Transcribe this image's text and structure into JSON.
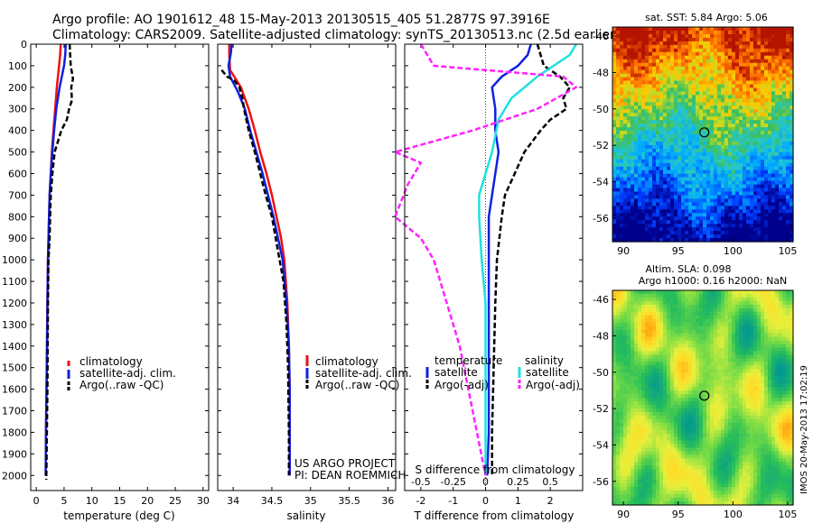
{
  "header": {
    "line1": "Argo profile: AO 1901612_48 15-May-2013 20130515_405 51.2877S 97.3916E",
    "line2": "Climatology: CARS2009. Satellite-adjusted climatology: synTS_20130513.nc (2.5d earlier)"
  },
  "colors": {
    "clim": "#ee1111",
    "sat": "#1020e0",
    "argo": "#000000",
    "sat_s": "#20e0e0",
    "argo_s": "#ff22ff"
  },
  "chart_data": [
    {
      "id": "temperature",
      "type": "line",
      "xlabel": "temperature (deg C)",
      "xlim": [
        -1,
        31
      ],
      "xticks": [
        0,
        5,
        10,
        15,
        20,
        25,
        30
      ],
      "xtick_labels": [
        "0",
        "5",
        "10",
        "15",
        "20",
        "25",
        "30"
      ],
      "ylim": [
        0,
        2070
      ],
      "yticks": [
        0,
        100,
        200,
        300,
        400,
        500,
        600,
        700,
        800,
        900,
        1000,
        1100,
        1200,
        1300,
        1400,
        1500,
        1600,
        1700,
        1800,
        1900,
        2000
      ],
      "ytick_labels": [
        "0",
        "100",
        "200",
        "300",
        "400",
        "500",
        "600",
        "700",
        "800",
        "900",
        "1000",
        "1100",
        "1200",
        "1300",
        "1400",
        "1500",
        "1600",
        "1700",
        "1800",
        "1900",
        "2000"
      ],
      "legend": [
        "climatology",
        "satellite-adj. clim.",
        "Argo(..raw -QC)"
      ],
      "legend_position": "lower-right",
      "series": [
        {
          "name": "climatology",
          "color": "clim",
          "dash": "solid",
          "x": [
            4.4,
            4.3,
            4.1,
            3.7,
            3.4,
            3.1,
            2.8,
            2.6,
            2.4,
            2.3,
            2.2,
            2.1,
            2.0,
            1.9,
            1.85,
            1.75,
            1.7
          ],
          "y": [
            0,
            50,
            100,
            200,
            300,
            400,
            500,
            600,
            700,
            800,
            900,
            1000,
            1200,
            1400,
            1600,
            1800,
            2000
          ]
        },
        {
          "name": "satellite-adj. clim.",
          "color": "sat",
          "dash": "solid",
          "x": [
            5.3,
            5.2,
            5.0,
            4.2,
            3.6,
            3.2,
            2.9,
            2.6,
            2.4,
            2.3,
            2.2,
            2.1,
            2.0,
            1.95,
            1.85,
            1.75,
            1.7
          ],
          "y": [
            0,
            50,
            100,
            200,
            300,
            400,
            500,
            600,
            700,
            800,
            900,
            1000,
            1200,
            1400,
            1600,
            1800,
            2000
          ]
        },
        {
          "name": "Argo(..raw -QC)",
          "color": "argo",
          "dash": "dash",
          "x": [
            6.0,
            6.2,
            6.6,
            6.3,
            6.4,
            5.9,
            5.5,
            4.5,
            3.3,
            2.9,
            2.6,
            2.5,
            2.4,
            2.2,
            2.1,
            2.05,
            2.0,
            1.9,
            1.85,
            1.8
          ],
          "y": [
            0,
            100,
            160,
            200,
            260,
            300,
            350,
            400,
            500,
            600,
            700,
            800,
            900,
            1000,
            1200,
            1400,
            1600,
            1800,
            1950,
            2020
          ]
        }
      ]
    },
    {
      "id": "salinity",
      "type": "line",
      "xlabel": "salinity",
      "xlim": [
        33.8,
        36.1
      ],
      "xticks": [
        34,
        34.5,
        35,
        35.5,
        36
      ],
      "xtick_labels": [
        "34",
        "34.5",
        "35",
        "35.5",
        "36"
      ],
      "ylim": [
        0,
        2070
      ],
      "yticks": [
        0,
        100,
        200,
        300,
        400,
        500,
        600,
        700,
        800,
        900,
        1000,
        1100,
        1200,
        1300,
        1400,
        1500,
        1600,
        1700,
        1800,
        1900,
        2000
      ],
      "legend": [
        "climatology",
        "satellite-adj. clim.",
        "Argo(..raw -QC)"
      ],
      "legend_position": "lower-right",
      "annotations": [
        "US ARGO PROJECT",
        "PI: DEAN ROEMMICH"
      ],
      "series": [
        {
          "name": "climatology",
          "color": "clim",
          "dash": "solid",
          "x": [
            33.95,
            33.95,
            33.96,
            34.1,
            34.2,
            34.28,
            34.35,
            34.43,
            34.5,
            34.56,
            34.62,
            34.66,
            34.7,
            34.72,
            34.73,
            34.73,
            34.73
          ],
          "y": [
            0,
            50,
            120,
            200,
            300,
            400,
            500,
            600,
            700,
            800,
            900,
            1000,
            1200,
            1400,
            1600,
            1800,
            2000
          ]
        },
        {
          "name": "satellite-adj. clim.",
          "color": "sat",
          "dash": "solid",
          "x": [
            33.98,
            33.97,
            33.94,
            33.96,
            34.06,
            34.15,
            34.22,
            34.3,
            34.38,
            34.45,
            34.52,
            34.58,
            34.64,
            34.69,
            34.72,
            34.73,
            34.73,
            34.73
          ],
          "y": [
            0,
            40,
            100,
            150,
            220,
            300,
            400,
            500,
            600,
            700,
            800,
            900,
            1000,
            1200,
            1400,
            1600,
            1800,
            2000
          ]
        },
        {
          "name": "Argo(..raw -QC)",
          "color": "argo",
          "dash": "dash",
          "x": [
            33.85,
            33.92,
            34.02,
            34.08,
            34.12,
            34.14,
            34.2,
            34.28,
            34.35,
            34.42,
            34.5,
            34.55,
            34.6,
            34.65,
            34.69,
            34.71,
            34.72,
            34.72
          ],
          "y": [
            120,
            150,
            170,
            200,
            250,
            300,
            400,
            500,
            600,
            700,
            800,
            900,
            1000,
            1100,
            1300,
            1500,
            1800,
            2000
          ]
        }
      ]
    },
    {
      "id": "difference",
      "type": "line",
      "xlabel": "T difference from climatology",
      "xlabel_top": "S difference from climatology",
      "xlim": [
        -2.5,
        3
      ],
      "xticks": [
        -2,
        -1,
        0,
        1,
        2
      ],
      "xtick_labels": [
        "-2",
        "-1",
        "0",
        "1",
        "2"
      ],
      "s_ticks": [
        -0.5,
        -0.25,
        0,
        0.25,
        0.5
      ],
      "s_tick_labels": [
        "-0.5",
        "-0.25",
        "0",
        "0.25",
        "0.5"
      ],
      "ylim": [
        0,
        2070
      ],
      "yticks": [
        0,
        100,
        200,
        300,
        400,
        500,
        600,
        700,
        800,
        900,
        1000,
        1100,
        1200,
        1300,
        1400,
        1500,
        1600,
        1700,
        1800,
        1900,
        2000
      ],
      "legend_groups": [
        {
          "title": "temperature",
          "entries": [
            "satellite",
            "Argo(-adj)"
          ]
        },
        {
          "title": "salinity",
          "entries": [
            "satellite",
            "Argo(-adj)"
          ]
        }
      ],
      "series": [
        {
          "name": "temperature satellite",
          "color": "sat",
          "dash": "solid",
          "x": [
            1.4,
            1.3,
            1.0,
            0.5,
            0.2,
            0.3,
            0.3,
            0.4,
            0.3,
            0.2,
            0.1,
            0.1,
            0.1,
            0.1,
            0.1,
            0.1,
            0.05
          ],
          "y": [
            0,
            50,
            100,
            150,
            200,
            300,
            400,
            500,
            600,
            700,
            800,
            1000,
            1200,
            1400,
            1600,
            1800,
            2000
          ]
        },
        {
          "name": "temperature Argo(-adj)",
          "color": "argo",
          "dash": "dash",
          "x": [
            1.6,
            1.8,
            2.3,
            2.6,
            2.4,
            2.5,
            2.0,
            1.7,
            1.2,
            0.9,
            0.6,
            0.5,
            0.35,
            0.3,
            0.25,
            0.2,
            0.2
          ],
          "y": [
            0,
            100,
            150,
            200,
            250,
            300,
            350,
            400,
            500,
            600,
            700,
            800,
            1000,
            1200,
            1500,
            1800,
            2000
          ]
        },
        {
          "name": "salinity satellite",
          "color": "sat_s",
          "dash": "solid",
          "x": [
            0.7,
            0.65,
            0.4,
            0.2,
            0.1,
            0.05,
            0.0,
            -0.05,
            -0.05,
            -0.03,
            0.0,
            0.0,
            0.0,
            0.0,
            0.0
          ],
          "y": [
            0,
            50,
            150,
            250,
            350,
            500,
            600,
            700,
            800,
            1000,
            1200,
            1400,
            1600,
            1800,
            2000
          ]
        },
        {
          "name": "salinity Argo(-adj)",
          "color": "argo_s",
          "dash": "dash",
          "x": [
            -0.5,
            -0.4,
            0.6,
            0.7,
            0.4,
            -0.1,
            -0.7,
            -0.5,
            -0.6,
            -0.7,
            -0.5,
            -0.4,
            -0.3,
            -0.2,
            -0.1,
            0.0
          ],
          "y": [
            0,
            100,
            150,
            200,
            300,
            400,
            500,
            550,
            650,
            800,
            900,
            1000,
            1200,
            1400,
            1700,
            2000
          ]
        }
      ]
    },
    {
      "id": "sst-map",
      "type": "heatmap",
      "title": "sat. SST: 5.84  Argo: 5.06",
      "xlim": [
        89,
        105.5
      ],
      "ylim": [
        -57.3,
        -45.5
      ],
      "xticks": [
        90,
        95,
        100,
        105
      ],
      "xtick_labels": [
        "90",
        "95",
        "100",
        "105"
      ],
      "yticks": [
        -46,
        -48,
        -50,
        -52,
        -54,
        -56
      ],
      "ytick_labels": [
        "-46",
        "-48",
        "-50",
        "-52",
        "-54",
        "-56"
      ],
      "marker": [
        97.39,
        -51.29
      ]
    },
    {
      "id": "sla-map",
      "type": "heatmap",
      "title": "Altim. SLA: 0.098",
      "subtitle": "Argo h1000: 0.16  h2000: NaN",
      "xlim": [
        89,
        105.5
      ],
      "ylim": [
        -57.3,
        -45.5
      ],
      "xticks": [
        90,
        95,
        100,
        105
      ],
      "xtick_labels": [
        "90",
        "95",
        "100",
        "105"
      ],
      "yticks": [
        -46,
        -48,
        -50,
        -52,
        -54,
        -56
      ],
      "ytick_labels": [
        "-46",
        "-48",
        "-50",
        "-52",
        "-54",
        "-56"
      ],
      "marker": [
        97.39,
        -51.29
      ]
    }
  ],
  "footer": {
    "stamp": "IMOS 20-May-2013 17:02:19"
  }
}
